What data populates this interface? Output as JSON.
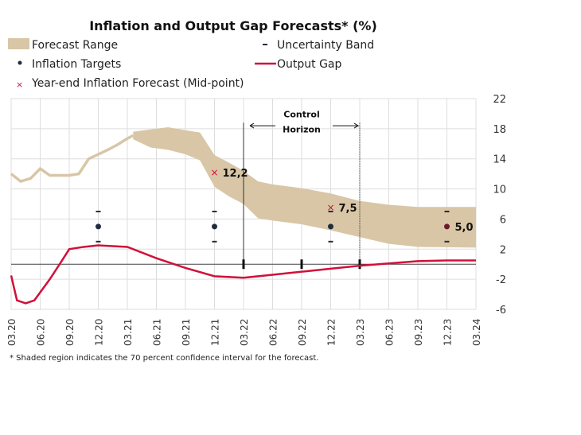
{
  "chart_data": {
    "type": "area",
    "title": "Inflation and Output Gap Forecasts* (%)",
    "footnote": "* Shaded region indicates the 70 percent confidence interval for the forecast.",
    "legend": {
      "forecast_range": "Forecast Range",
      "uncertainty_band": "Uncertainty Band",
      "inflation_targets": "Inflation Targets",
      "output_gap": "Output Gap",
      "year_end_forecast": "Year-end Inflation Forecast (Mid-point)"
    },
    "legend_placement": "top",
    "x_categories": [
      "03.20",
      "06.20",
      "09.20",
      "12.20",
      "03.21",
      "06.21",
      "09.21",
      "12.21",
      "03.22",
      "06.22",
      "09.22",
      "12.22",
      "03.23",
      "06.23",
      "09.23",
      "12.23",
      "03.24"
    ],
    "ylim": [
      -6,
      22
    ],
    "y_ticks": [
      22,
      18,
      14,
      10,
      6,
      2,
      -2,
      -6
    ],
    "y_axis_side": "right",
    "grid": true,
    "colors": {
      "band": "#d8c6a6",
      "output_gap": "#d0103a",
      "target": "#1f2d3d",
      "cross": "#d0103a",
      "grid": "#dddddd"
    },
    "inflation_history": [
      [
        0,
        12
      ],
      [
        0.33,
        11
      ],
      [
        0.67,
        11.4
      ],
      [
        1,
        12.7
      ],
      [
        1.33,
        11.8
      ],
      [
        1.67,
        11.8
      ],
      [
        2,
        11.8
      ],
      [
        2.33,
        12
      ],
      [
        2.67,
        14
      ],
      [
        3,
        14.6
      ],
      [
        3.33,
        15.2
      ],
      [
        3.67,
        15.9
      ],
      [
        4,
        16.7
      ],
      [
        4.2,
        17.1
      ]
    ],
    "forecast_band": [
      {
        "x": 4.2,
        "upper": 17.6,
        "lower": 16.6
      },
      {
        "x": 4.8,
        "upper": 17.9,
        "lower": 15.5
      },
      {
        "x": 5.4,
        "upper": 18.2,
        "lower": 15.2
      },
      {
        "x": 6.0,
        "upper": 17.8,
        "lower": 14.6
      },
      {
        "x": 6.5,
        "upper": 17.5,
        "lower": 13.8
      },
      {
        "x": 7.0,
        "upper": 14.5,
        "lower": 10.3
      },
      {
        "x": 7.5,
        "upper": 13.5,
        "lower": 9.0
      },
      {
        "x": 8.0,
        "upper": 12.4,
        "lower": 8.0
      },
      {
        "x": 8.5,
        "upper": 11.0,
        "lower": 6.1
      },
      {
        "x": 9.0,
        "upper": 10.6,
        "lower": 5.8
      },
      {
        "x": 10.0,
        "upper": 10.1,
        "lower": 5.3
      },
      {
        "x": 11.0,
        "upper": 9.4,
        "lower": 4.5
      },
      {
        "x": 12.0,
        "upper": 8.4,
        "lower": 3.6
      },
      {
        "x": 13.0,
        "upper": 7.9,
        "lower": 2.7
      },
      {
        "x": 14.0,
        "upper": 7.6,
        "lower": 2.3
      },
      {
        "x": 16.0,
        "upper": 7.6,
        "lower": 2.2
      }
    ],
    "output_gap": [
      [
        0,
        -1.5
      ],
      [
        0.2,
        -4.8
      ],
      [
        0.5,
        -5.2
      ],
      [
        0.8,
        -4.8
      ],
      [
        1.33,
        -2
      ],
      [
        1.67,
        0
      ],
      [
        2,
        2
      ],
      [
        2.5,
        2.3
      ],
      [
        3,
        2.5
      ],
      [
        3.5,
        2.4
      ],
      [
        4,
        2.3
      ],
      [
        5,
        0.8
      ],
      [
        6,
        -0.5
      ],
      [
        7,
        -1.6
      ],
      [
        8,
        -1.8
      ],
      [
        9,
        -1.4
      ],
      [
        10,
        -1.0
      ],
      [
        11,
        -0.6
      ],
      [
        12,
        -0.2
      ],
      [
        13,
        0.1
      ],
      [
        14,
        0.4
      ],
      [
        15,
        0.5
      ],
      [
        16,
        0.5
      ]
    ],
    "inflation_targets": [
      {
        "x": "12.20",
        "target": 5,
        "band_low": 3,
        "band_high": 7
      },
      {
        "x": "12.21",
        "target": 5,
        "band_low": 3,
        "band_high": 7
      },
      {
        "x": "12.22",
        "target": 5,
        "band_low": 3,
        "band_high": 7
      },
      {
        "x": "12.23",
        "target": 5,
        "band_low": 3,
        "band_high": 7
      }
    ],
    "year_end_forecasts": [
      {
        "x": "12.21",
        "value": 12.2,
        "label": "12,2"
      },
      {
        "x": "12.22",
        "value": 7.5,
        "label": "7,5"
      },
      {
        "x": "12.23",
        "value": 5.0,
        "label": "5,0"
      }
    ],
    "control_horizon": {
      "label_line1": "Control",
      "label_line2": "Horizon",
      "start": "03.22",
      "end": "03.23",
      "ticks": [
        "03.22",
        "09.22",
        "03.23"
      ]
    }
  }
}
